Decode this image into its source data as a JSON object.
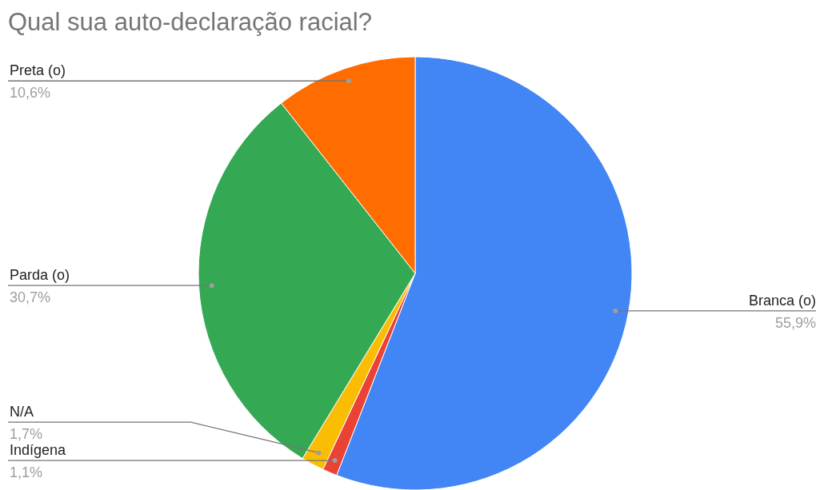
{
  "chart_data": {
    "type": "pie",
    "title": "Qual sua auto-declaração racial?",
    "categories": [
      "Branca (o)",
      "Indígena",
      "N/A",
      "Parda (o)",
      "Preta (o)"
    ],
    "values": [
      55.9,
      1.1,
      1.7,
      30.7,
      10.6
    ],
    "colors": [
      "#4285f4",
      "#ea4335",
      "#fbbc04",
      "#34a853",
      "#ff6d01"
    ],
    "value_labels": [
      "55,9%",
      "1,1%",
      "1,7%",
      "30,7%",
      "10,6%"
    ]
  }
}
